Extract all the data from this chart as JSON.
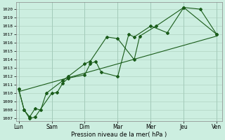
{
  "xlabel": "Pression niveau de la mer( hPa )",
  "bg_color": "#cceee0",
  "grid_color": "#99ccbb",
  "line_color": "#1a5c1a",
  "ylim": [
    1007,
    1020.5
  ],
  "yticks": [
    1007,
    1008,
    1009,
    1010,
    1011,
    1012,
    1013,
    1014,
    1015,
    1016,
    1017,
    1018,
    1019,
    1020
  ],
  "days": [
    "Lun",
    "Sam",
    "Dim",
    "Mar",
    "Mer",
    "Jeu",
    "Ven"
  ],
  "day_positions": [
    0,
    6,
    12,
    18,
    24,
    30,
    36
  ],
  "series1_x": [
    0,
    1,
    2,
    3,
    6,
    7,
    8,
    9,
    12,
    13,
    14,
    15,
    18,
    20,
    21,
    24,
    27,
    30,
    33,
    36
  ],
  "series1_y": [
    1010.5,
    1008.0,
    1007.0,
    1007.2,
    1010.0,
    1010.1,
    1011.2,
    1011.8,
    1012.2,
    1013.5,
    1013.8,
    1012.5,
    1012.0,
    1017.0,
    1016.7,
    1018.0,
    1017.2,
    1020.2,
    1020.0,
    1017.0
  ],
  "series2_x": [
    0,
    1,
    2,
    3,
    4,
    5,
    8,
    9,
    12,
    13,
    16,
    18,
    21,
    22,
    25,
    30,
    36
  ],
  "series2_y": [
    1010.5,
    1008.0,
    1007.2,
    1008.2,
    1008.0,
    1010.0,
    1011.5,
    1012.0,
    1013.5,
    1013.8,
    1016.7,
    1016.5,
    1014.0,
    1016.8,
    1018.0,
    1020.2,
    1017.0
  ],
  "trend_x": [
    0,
    36
  ],
  "trend_y": [
    1010.2,
    1016.8
  ],
  "xlim": [
    -0.5,
    37
  ]
}
